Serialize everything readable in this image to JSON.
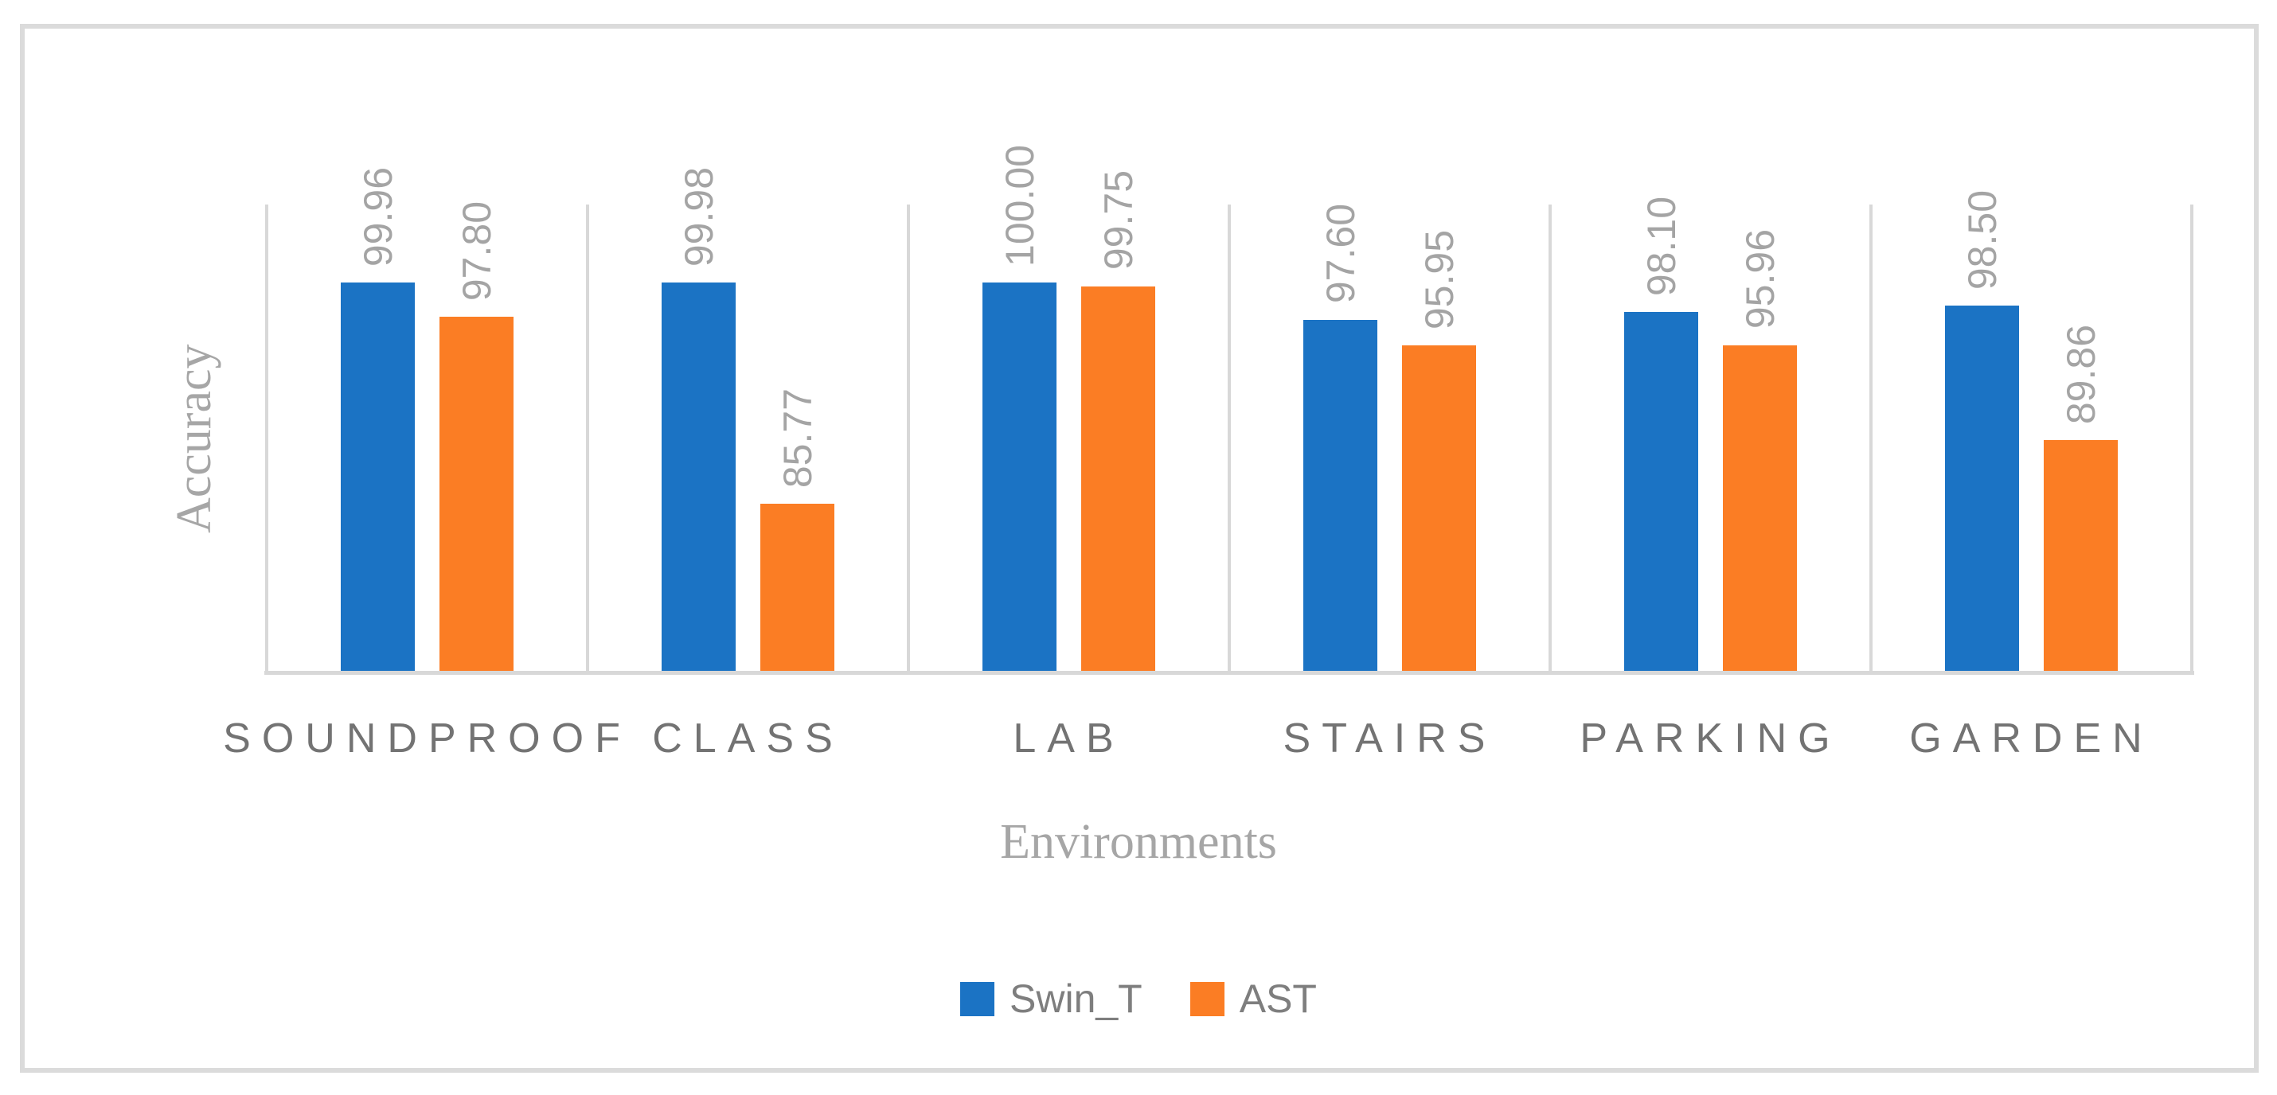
{
  "figure": {
    "background": "#ffffff",
    "border_color": "#dbdbdb",
    "gridline_color": "#d8d8d8"
  },
  "chart_data": {
    "type": "bar",
    "title": "",
    "categories": [
      "SOUNDPROOF",
      "CLASS",
      "LAB",
      "STAIRS",
      "PARKING",
      "GARDEN"
    ],
    "series": [
      {
        "name": "Swin_T",
        "color": "#1b73c4",
        "values": [
          99.96,
          99.98,
          100.0,
          97.6,
          98.1,
          98.5
        ]
      },
      {
        "name": "AST",
        "color": "#fb7d24",
        "values": [
          97.8,
          85.77,
          99.75,
          95.95,
          95.96,
          89.86
        ]
      }
    ],
    "xlabel": "Environments",
    "ylabel": "Accuracy",
    "ylim": [
      75,
      105
    ],
    "grid": "vertical category separators only",
    "legend_position": "bottom-center",
    "data_labels": {
      "rotation": "up",
      "format": "2-decimals",
      "color": "#a4a4a4"
    },
    "category_label_color": "#737373",
    "axis_title_color": "#a6a6a6",
    "legend_text_color": "#7e7e7e"
  }
}
